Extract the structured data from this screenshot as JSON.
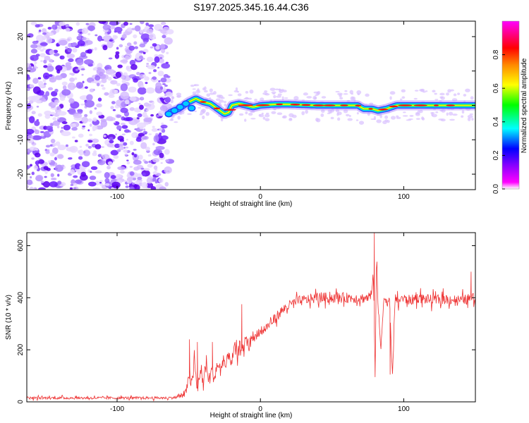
{
  "title": "S197.2025.345.16.44.C36",
  "chart_data": [
    {
      "type": "heatmap",
      "title": "S197.2025.345.16.44.C36",
      "xlabel": "Height of straight line (km)",
      "ylabel": "Frequency (Hz)",
      "xlim": [
        -163,
        150
      ],
      "ylim": [
        -24.5,
        24.5
      ],
      "xticks": [
        -100,
        0,
        100
      ],
      "yticks": [
        20,
        10,
        0,
        -10,
        -20
      ],
      "description_points": {
        "x_km": [
          -63,
          -57,
          -50,
          -45,
          -40,
          -35,
          -30,
          -25,
          -22,
          -20,
          -15,
          -10,
          -5,
          0,
          10,
          20,
          40,
          60,
          68,
          72,
          78,
          82,
          88,
          95,
          105,
          120,
          150
        ],
        "freq_hz": [
          -2,
          -1,
          1,
          2,
          1,
          0.5,
          -1,
          -2.5,
          -2,
          0,
          0.5,
          0,
          -0.5,
          0,
          0.3,
          0.3,
          0,
          0,
          0,
          -1,
          -1,
          -1.5,
          -1,
          0,
          0,
          0,
          0
        ]
      },
      "noise_region_x_km": [
        -163,
        -63
      ],
      "colorbar": {
        "label": "Normalized spectral amplitude",
        "range": [
          0.0,
          1.0
        ],
        "ticks": [
          0.0,
          0.2,
          0.4,
          0.6,
          0.8
        ],
        "tick_labels": [
          "0.0",
          "0.2",
          "0.4",
          "0.6",
          "0.8"
        ],
        "colors": [
          "#ffffff",
          "#ff00ff",
          "#8800ff",
          "#0000ff",
          "#00ffff",
          "#00ff00",
          "#ffff00",
          "#ff8800",
          "#ff0000",
          "#ff00ff"
        ]
      }
    },
    {
      "type": "line",
      "xlabel": "Height of straight line (km)",
      "ylabel": "SNR (10 * v/v)",
      "xlim": [
        -163,
        150
      ],
      "ylim": [
        0,
        650
      ],
      "xticks": [
        -100,
        0,
        100
      ],
      "yticks": [
        0,
        200,
        400,
        600
      ],
      "series": [
        {
          "name": "SNR",
          "color": "#ee3333",
          "x": [
            -163,
            -140,
            -120,
            -100,
            -80,
            -65,
            -58,
            -52,
            -50,
            -48,
            -46,
            -44,
            -42,
            -40,
            -38,
            -36,
            -34,
            -32,
            -30,
            -28,
            -26,
            -24,
            -22,
            -20,
            -18,
            -16,
            -14,
            -12,
            -10,
            -8,
            -6,
            -4,
            -2,
            0,
            5,
            10,
            15,
            20,
            25,
            30,
            35,
            40,
            50,
            60,
            70,
            75,
            78,
            79,
            80,
            81,
            82,
            84,
            86,
            88,
            90,
            92,
            94,
            96,
            98,
            100,
            105,
            110,
            120,
            130,
            140,
            150
          ],
          "y": [
            15,
            15,
            15,
            15,
            15,
            15,
            18,
            30,
            120,
            60,
            150,
            40,
            130,
            60,
            160,
            80,
            120,
            90,
            150,
            110,
            170,
            130,
            190,
            150,
            210,
            170,
            230,
            190,
            250,
            210,
            260,
            240,
            270,
            265,
            290,
            320,
            350,
            370,
            385,
            390,
            395,
            400,
            400,
            400,
            398,
            400,
            420,
            500,
            100,
            560,
            380,
            200,
            400,
            380,
            400,
            100,
            400,
            380,
            400,
            395,
            390,
            400,
            390,
            395,
            390,
            400
          ],
          "noise_amplitude": [
            10,
            10,
            10,
            10,
            10,
            10,
            12,
            40,
            70,
            50,
            70,
            40,
            70,
            60,
            70,
            60,
            60,
            50,
            60,
            50,
            60,
            50,
            60,
            50,
            50,
            50,
            50,
            45,
            50,
            45,
            45,
            40,
            40,
            40,
            40,
            40,
            40,
            40,
            40,
            40,
            40,
            40,
            40,
            40,
            40,
            40,
            40,
            80,
            40,
            80,
            40,
            40,
            40,
            40,
            40,
            40,
            40,
            40,
            40,
            40,
            40,
            40,
            40,
            40,
            40,
            40
          ],
          "spikes": [
            {
              "x": -49.5,
              "y": 240
            },
            {
              "x": -44,
              "y": 230
            },
            {
              "x": -33.5,
              "y": 230
            },
            {
              "x": -13,
              "y": 375
            },
            {
              "x": 79.5,
              "y": 650
            },
            {
              "x": 80,
              "y": 95
            },
            {
              "x": 90.5,
              "y": 105
            },
            {
              "x": 147,
              "y": 500
            }
          ]
        }
      ]
    }
  ]
}
